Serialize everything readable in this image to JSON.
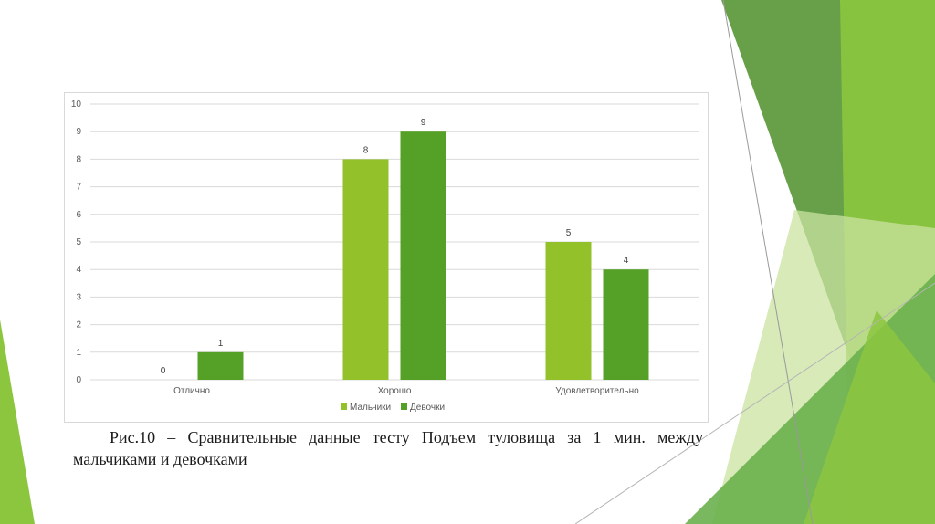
{
  "slide": {
    "accent_light": "#8cc63f",
    "accent_mid": "#6ab04c",
    "accent_dark": "#4e8f2a",
    "accent_pale": "#c9e3a0"
  },
  "caption": {
    "text": "Рис.10 – Сравнительные данные тесту Подъем туловища за 1 мин. между мальчиками и девочками"
  },
  "chart_data": {
    "type": "bar",
    "categories": [
      "Отлично",
      "Хорошо",
      "Удовлетворительно"
    ],
    "series": [
      {
        "name": "Мальчики",
        "values": [
          0,
          8,
          5
        ],
        "color": "#92c12a"
      },
      {
        "name": "Девочки",
        "values": [
          1,
          9,
          4
        ],
        "color": "#55a026"
      }
    ],
    "ylim": [
      0,
      10
    ],
    "yticks": [
      0,
      1,
      2,
      3,
      4,
      5,
      6,
      7,
      8,
      9,
      10
    ],
    "grid": true,
    "legend": "bottom",
    "data_labels": true
  }
}
